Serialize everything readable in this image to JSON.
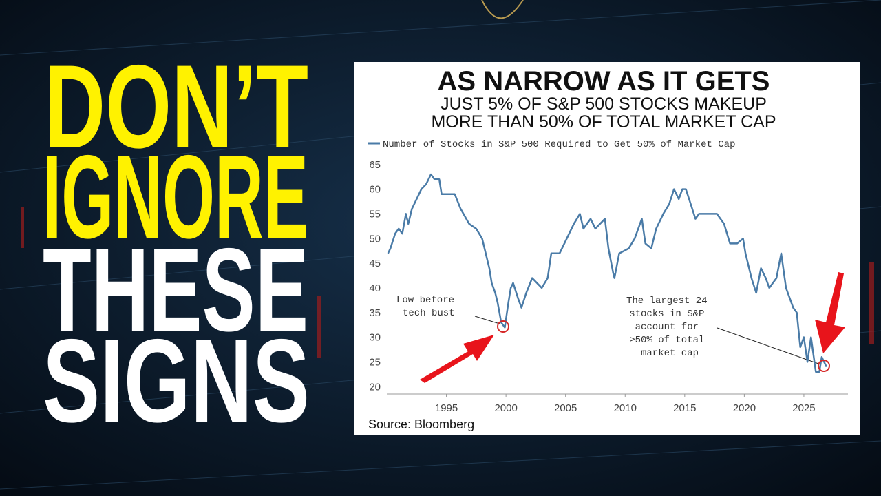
{
  "headline": {
    "lines": [
      "DON’T",
      "IGNORE",
      "THESE",
      "SIGNS"
    ]
  },
  "chart_data": {
    "type": "line",
    "title": "AS NARROW AS IT GETS",
    "subtitle": [
      "JUST 5% OF S&P 500 STOCKS MAKEUP",
      "MORE THAN 50% OF TOTAL MARKET CAP"
    ],
    "x": [
      1990.1,
      1990.3,
      1990.7,
      1991.0,
      1991.3,
      1991.6,
      1991.8,
      1992.1,
      1992.5,
      1992.9,
      1993.3,
      1993.7,
      1994.0,
      1994.4,
      1994.6,
      1995.7,
      1996.2,
      1996.9,
      1997.5,
      1998.0,
      1998.3,
      1998.6,
      1998.8,
      1999.1,
      1999.3,
      1999.6,
      1999.9,
      2000.2,
      2000.4,
      2000.6,
      2001.0,
      2001.3,
      2001.7,
      2002.2,
      2003.0,
      2003.5,
      2003.8,
      2004.5,
      2005.1,
      2005.7,
      2006.2,
      2006.5,
      2007.1,
      2007.5,
      2008.3,
      2008.6,
      2009.0,
      2009.1,
      2009.5,
      2010.3,
      2010.8,
      2011.4,
      2011.7,
      2012.2,
      2012.6,
      2013.2,
      2013.7,
      2014.1,
      2014.5,
      2014.8,
      2015.1,
      2015.5,
      2015.9,
      2016.2,
      2017.7,
      2018.3,
      2018.8,
      2019.4,
      2019.9,
      2020.1,
      2020.6,
      2021.0,
      2021.4,
      2021.8,
      2022.1,
      2022.7,
      2023.1,
      2023.5,
      2024.1,
      2024.4,
      2024.7,
      2025.0,
      2025.3,
      2025.6,
      2026.0,
      2026.3,
      2026.5,
      2026.9
    ],
    "series": [
      {
        "name": "Number of Stocks in S&P 500 Required to Get 50% of Market Cap",
        "color": "#4a7ba7",
        "values": [
          47,
          48,
          51,
          52,
          51,
          55,
          53,
          56,
          58,
          60,
          61,
          63,
          62,
          62,
          59,
          59,
          56,
          53,
          52,
          50,
          47,
          44,
          41,
          39,
          37,
          33,
          32,
          37,
          40,
          41,
          38,
          36,
          39,
          42,
          40,
          42,
          47,
          47,
          50,
          53,
          55,
          52,
          54,
          52,
          54,
          48,
          43,
          42,
          47,
          48,
          50,
          54,
          49,
          48,
          52,
          55,
          57,
          60,
          58,
          60,
          60,
          57,
          54,
          55,
          55,
          53,
          49,
          49,
          50,
          47,
          42,
          39,
          44,
          42,
          40,
          42,
          47,
          40,
          36,
          35,
          28,
          30,
          25,
          30,
          23,
          23,
          26,
          24
        ]
      }
    ],
    "xlim": [
      1990,
      2028.7
    ],
    "ylim": [
      18.5,
      66.5
    ],
    "xticks": [
      1995,
      2000,
      2005,
      2010,
      2015,
      2020,
      2025
    ],
    "yticks": [
      20,
      25,
      30,
      35,
      40,
      45,
      50,
      55,
      60,
      65
    ],
    "grid": false,
    "annotations": [
      {
        "lines": [
          "Low before",
          "tech bust"
        ]
      },
      {
        "lines": [
          "The largest 24",
          "stocks in S&P",
          "account for",
          ">50% of total",
          "market cap"
        ]
      }
    ],
    "source": "Source: Bloomberg"
  }
}
